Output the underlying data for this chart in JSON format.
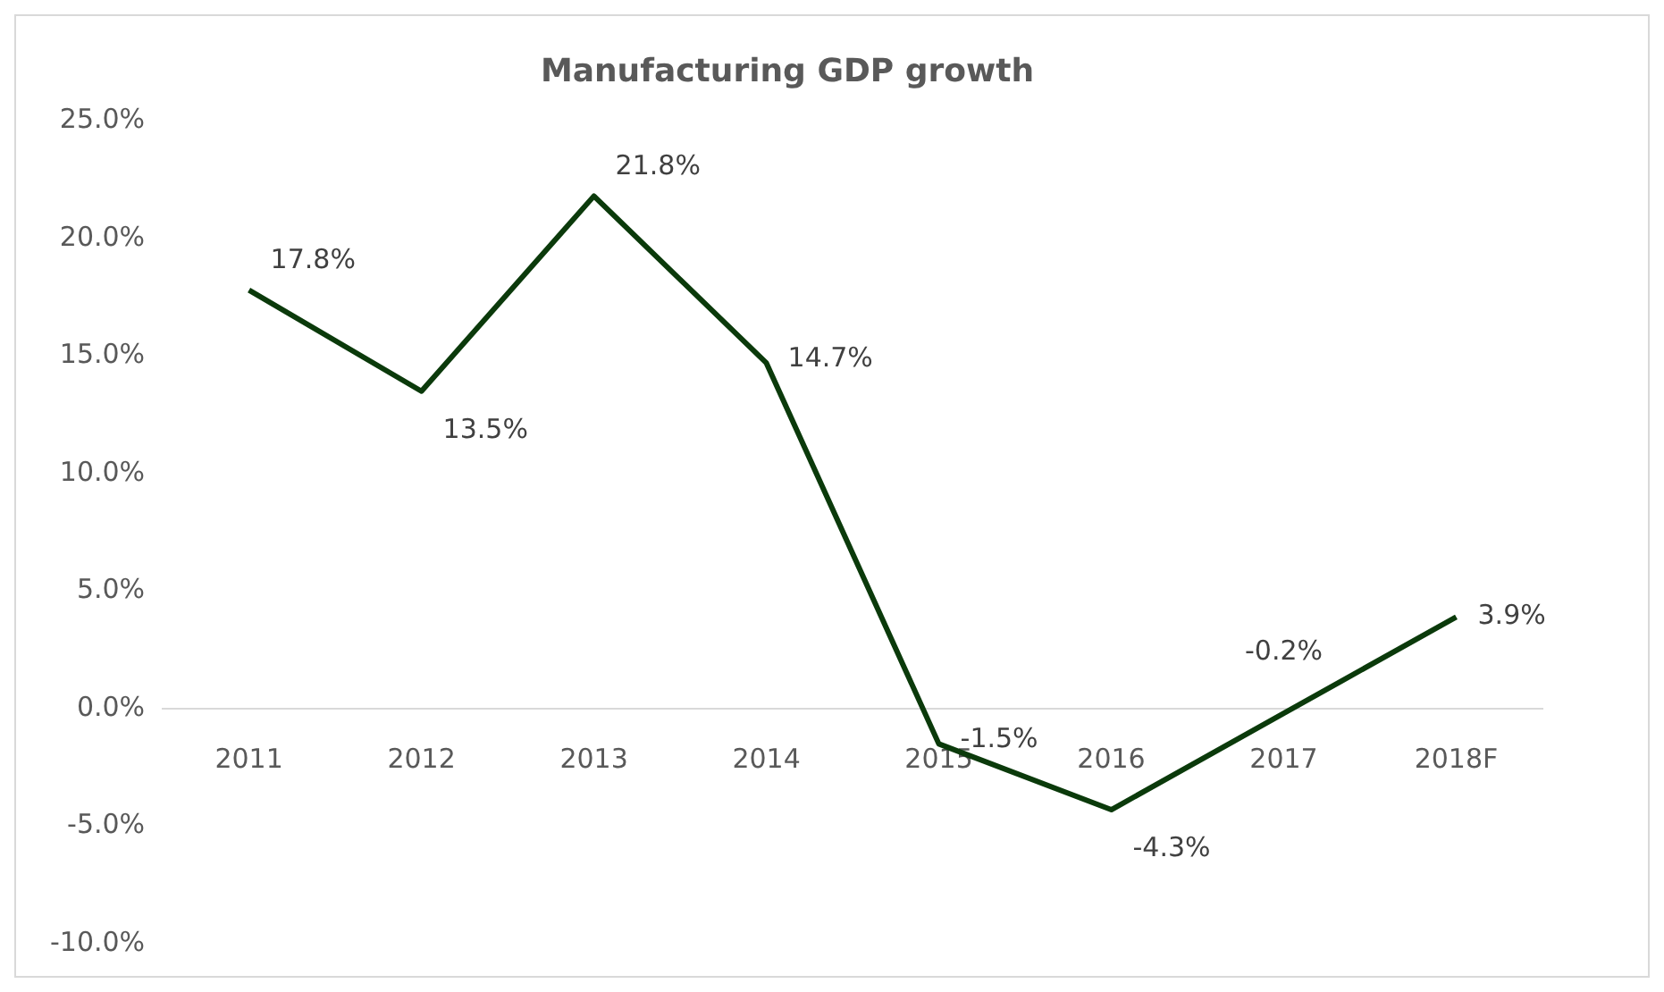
{
  "chart_data": {
    "type": "line",
    "title": "Manufacturing GDP growth",
    "categories": [
      "2011",
      "2012",
      "2013",
      "2014",
      "2015",
      "2016",
      "2017",
      "2018F"
    ],
    "series": [
      {
        "color": "#0b3a0b",
        "values": [
          17.8,
          13.5,
          21.8,
          14.7,
          -1.5,
          -4.3,
          -0.2,
          3.9
        ],
        "value_labels": [
          "17.8%",
          "13.5%",
          "21.8%",
          "14.7%",
          "-1.5%",
          "-4.3%",
          "-0.2%",
          "3.9%"
        ]
      }
    ],
    "ylim": [
      -10,
      25
    ],
    "yticks": [
      {
        "value": -10,
        "label": "-10.0%"
      },
      {
        "value": -5,
        "label": "-5.0%"
      },
      {
        "value": 0,
        "label": "0.0%"
      },
      {
        "value": 5,
        "label": "5.0%"
      },
      {
        "value": 10,
        "label": "10.0%"
      },
      {
        "value": 15,
        "label": "15.0%"
      },
      {
        "value": 20,
        "label": "20.0%"
      },
      {
        "value": 25,
        "label": "25.0%"
      }
    ],
    "marker": "none",
    "line_style": "solid",
    "legend": false,
    "grid": false
  }
}
